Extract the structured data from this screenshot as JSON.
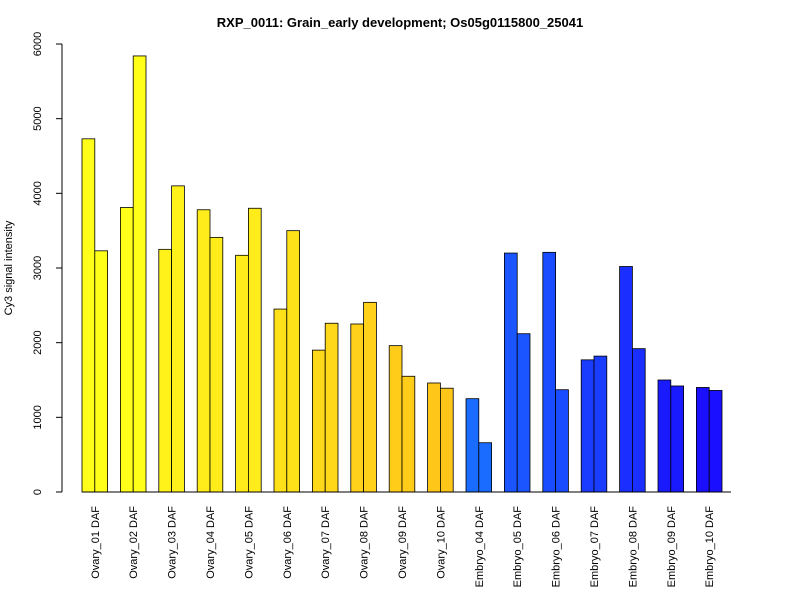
{
  "chart_data": {
    "type": "bar",
    "title": "RXP_0011: Grain_early development; Os05g0115800_25041",
    "ylabel": "Cy3 signal intensity",
    "xlabel": "",
    "ylim": [
      0,
      6000
    ],
    "yticks": [
      0,
      1000,
      2000,
      3000,
      4000,
      5000,
      6000
    ],
    "grid": false,
    "legend": "none",
    "categories": [
      "Ovary_01 DAF",
      "Ovary_02 DAF",
      "Ovary_03 DAF",
      "Ovary_04 DAF",
      "Ovary_05 DAF",
      "Ovary_06 DAF",
      "Ovary_07 DAF",
      "Ovary_08 DAF",
      "Ovary_09 DAF",
      "Ovary_10 DAF",
      "Embryo_04 DAF",
      "Embryo_05 DAF",
      "Embryo_06 DAF",
      "Embryo_07 DAF",
      "Embryo_08 DAF",
      "Embryo_09 DAF",
      "Embryo_10 DAF"
    ],
    "series": [
      {
        "values": [
          4730,
          3810,
          3250,
          3780,
          3170,
          2450,
          1900,
          2250,
          1960,
          1460,
          1250,
          3200,
          3210,
          1770,
          3020,
          1500,
          1400
        ]
      },
      {
        "values": [
          3230,
          5840,
          4100,
          3410,
          3800,
          3500,
          2260,
          2540,
          1550,
          1390,
          660,
          2120,
          1370,
          1820,
          1920,
          1420,
          1360
        ]
      }
    ],
    "colors": [
      "#ffff1a",
      "#ffff1a",
      "#fff21a",
      "#ffec1a",
      "#ffec1a",
      "#ffe11a",
      "#ffd81a",
      "#ffd11a",
      "#ffcc1a",
      "#ffc61a",
      "#1a6bff",
      "#1a55ff",
      "#1a4cff",
      "#1a3cff",
      "#1a2eff",
      "#1a1aff",
      "#1a10ff"
    ]
  }
}
